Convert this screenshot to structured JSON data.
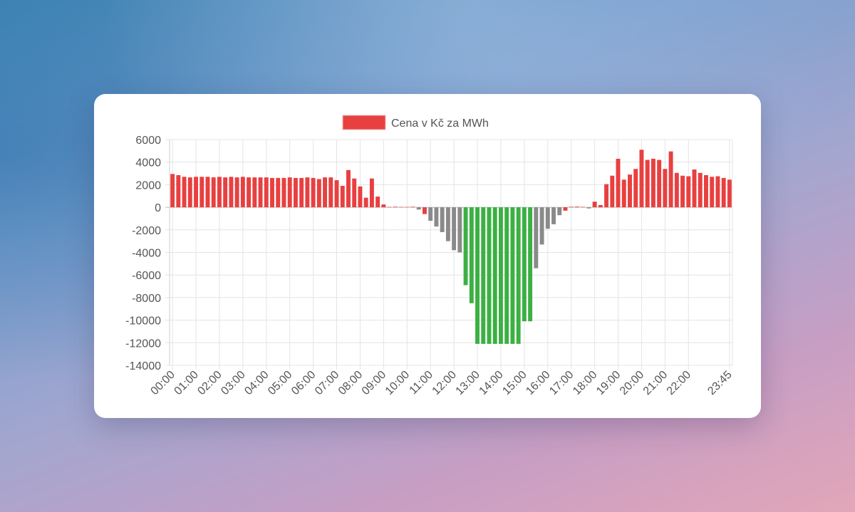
{
  "chart_data": {
    "type": "bar",
    "legend": [
      {
        "label": "Cena v Kč za MWh",
        "color": "#e84040"
      }
    ],
    "legend_position": "top-center",
    "grid": true,
    "ylim": [
      -14000,
      6000
    ],
    "y_ticks": [
      6000,
      4000,
      2000,
      0,
      -2000,
      -4000,
      -6000,
      -8000,
      -10000,
      -12000,
      -14000
    ],
    "x_tick_labels": [
      "00:00",
      "01:00",
      "02:00",
      "03:00",
      "04:00",
      "05:00",
      "06:00",
      "07:00",
      "08:00",
      "09:00",
      "10:00",
      "11:00",
      "12:00",
      "13:00",
      "14:00",
      "15:00",
      "16:00",
      "17:00",
      "18:00",
      "19:00",
      "20:00",
      "21:00",
      "22:00",
      "23:45"
    ],
    "colors": {
      "red": "#e84040",
      "gray": "#8a8a8a",
      "green": "#3cb043"
    },
    "categories": [
      "00:00",
      "00:15",
      "00:30",
      "00:45",
      "01:00",
      "01:15",
      "01:30",
      "01:45",
      "02:00",
      "02:15",
      "02:30",
      "02:45",
      "03:00",
      "03:15",
      "03:30",
      "03:45",
      "04:00",
      "04:15",
      "04:30",
      "04:45",
      "05:00",
      "05:15",
      "05:30",
      "05:45",
      "06:00",
      "06:15",
      "06:30",
      "06:45",
      "07:00",
      "07:15",
      "07:30",
      "07:45",
      "08:00",
      "08:15",
      "08:30",
      "08:45",
      "09:00",
      "09:15",
      "09:30",
      "09:45",
      "10:00",
      "10:15",
      "10:30",
      "10:45",
      "11:00",
      "11:15",
      "11:30",
      "11:45",
      "12:00",
      "12:15",
      "12:30",
      "12:45",
      "13:00",
      "13:15",
      "13:30",
      "13:45",
      "14:00",
      "14:15",
      "14:30",
      "14:45",
      "15:00",
      "15:15",
      "15:30",
      "15:45",
      "16:00",
      "16:15",
      "16:30",
      "16:45",
      "17:00",
      "17:15",
      "17:30",
      "17:45",
      "18:00",
      "18:15",
      "18:30",
      "18:45",
      "19:00",
      "19:15",
      "19:30",
      "19:45",
      "20:00",
      "20:15",
      "20:30",
      "20:45",
      "21:00",
      "21:15",
      "21:30",
      "21:45",
      "22:00",
      "22:15",
      "22:30",
      "22:45",
      "23:00",
      "23:15",
      "23:30",
      "23:45"
    ],
    "values": [
      2950,
      2850,
      2700,
      2650,
      2700,
      2700,
      2700,
      2650,
      2700,
      2650,
      2700,
      2650,
      2700,
      2650,
      2650,
      2650,
      2650,
      2600,
      2600,
      2600,
      2650,
      2600,
      2600,
      2650,
      2600,
      2500,
      2650,
      2650,
      2400,
      1900,
      3300,
      2550,
      1850,
      850,
      2550,
      950,
      250,
      30,
      50,
      30,
      30,
      50,
      -200,
      -600,
      -1200,
      -1700,
      -2200,
      -3000,
      -3800,
      -4000,
      -6900,
      -8500,
      -12100,
      -12100,
      -12100,
      -12100,
      -12100,
      -12100,
      -12100,
      -12100,
      -10100,
      -10100,
      -5400,
      -3300,
      -1900,
      -1500,
      -700,
      -300,
      50,
      60,
      40,
      -100,
      500,
      200,
      2050,
      2800,
      4300,
      2450,
      2900,
      3400,
      5100,
      4200,
      4300,
      4200,
      3400,
      4950,
      3050,
      2800,
      2750,
      3350,
      3050,
      2850,
      2700,
      2750,
      2600,
      2450
    ],
    "bar_colors": [
      "red",
      "red",
      "red",
      "red",
      "red",
      "red",
      "red",
      "red",
      "red",
      "red",
      "red",
      "red",
      "red",
      "red",
      "red",
      "red",
      "red",
      "red",
      "red",
      "red",
      "red",
      "red",
      "red",
      "red",
      "red",
      "red",
      "red",
      "red",
      "red",
      "red",
      "red",
      "red",
      "red",
      "red",
      "red",
      "red",
      "red",
      "red",
      "red",
      "red",
      "red",
      "red",
      "gray",
      "red",
      "gray",
      "gray",
      "gray",
      "gray",
      "gray",
      "gray",
      "green",
      "green",
      "green",
      "green",
      "green",
      "green",
      "green",
      "green",
      "green",
      "green",
      "green",
      "green",
      "gray",
      "gray",
      "gray",
      "gray",
      "gray",
      "red",
      "red",
      "red",
      "red",
      "gray",
      "red",
      "red",
      "red",
      "red",
      "red",
      "red",
      "red",
      "red",
      "red",
      "red",
      "red",
      "red",
      "red",
      "red",
      "red",
      "red",
      "red",
      "red",
      "red",
      "red",
      "red",
      "red",
      "red",
      "red"
    ]
  }
}
